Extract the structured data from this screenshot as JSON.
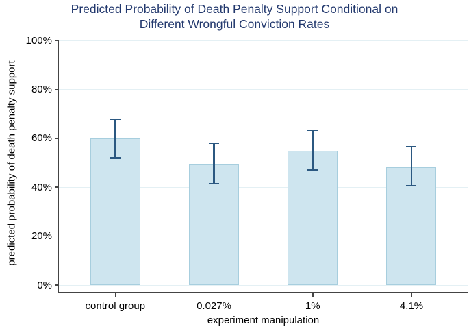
{
  "title": {
    "line1": "Predicted Probability of Death Penalty Support Conditional on",
    "line2": "Different Wrongful Conviction Rates"
  },
  "chart_data": {
    "type": "bar",
    "title": "Predicted Probability of Death Penalty Support Conditional on Different Wrongful Conviction Rates",
    "xlabel": "experiment manipulation",
    "ylabel": "predicted probability of death penalty support",
    "categories": [
      "control group",
      "0.027%",
      "1%",
      "4.1%"
    ],
    "values": [
      60.0,
      49.4,
      55.0,
      48.3
    ],
    "error_low": [
      52.0,
      41.5,
      47.1,
      40.6
    ],
    "error_high": [
      67.8,
      57.9,
      63.3,
      56.5
    ],
    "ylim": [
      0,
      100
    ],
    "yticks": [
      0,
      20,
      40,
      60,
      80,
      100
    ],
    "ytick_labels": [
      "0%",
      "20%",
      "40%",
      "60%",
      "80%",
      "100%"
    ],
    "grid": true,
    "legend": false,
    "bar_orientation": "vertical"
  },
  "colors": {
    "title_text": "#22386d",
    "bar_fill": "#cee5ef",
    "bar_border": "#a7cede",
    "error_bar": "#2b5881",
    "gridline": "#e4f0f4",
    "axis_line": "#444444",
    "tick_text": "#000000",
    "background": "#ffffff"
  }
}
